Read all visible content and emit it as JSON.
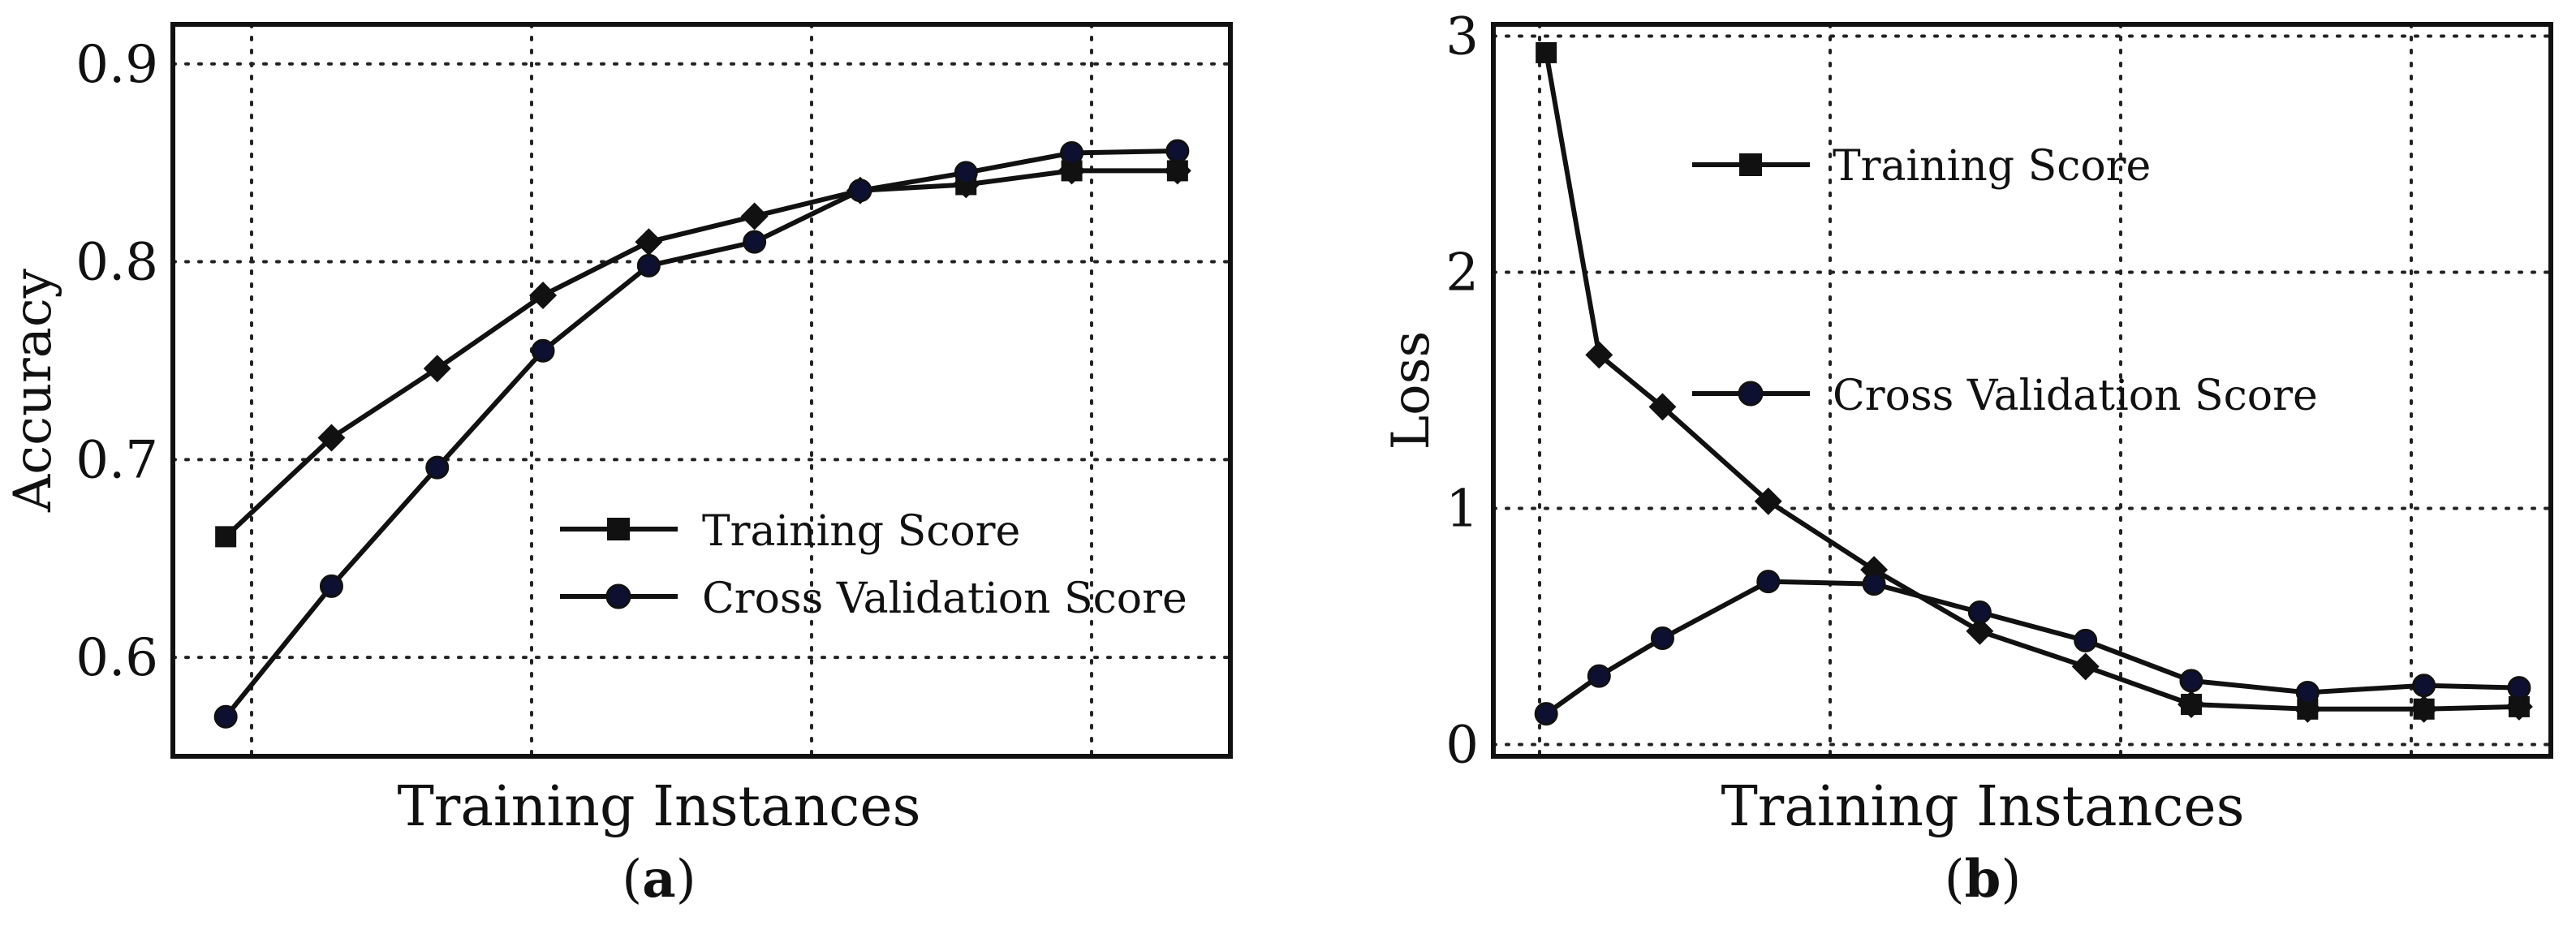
{
  "chart_data": [
    {
      "panel": "a",
      "type": "line",
      "xlabel": "Training Instances",
      "ylabel": "Accuracy",
      "caption_letter": "a",
      "grid": true,
      "legend_position": "center-right",
      "x": [
        1,
        2,
        3,
        4,
        5,
        6,
        7,
        8,
        9,
        10
      ],
      "xlim": [
        0.5,
        10.5
      ],
      "ylim": [
        0.55,
        0.92
      ],
      "yticks": [
        0.6,
        0.7,
        0.8,
        0.9
      ],
      "ytick_labels": [
        "0.6",
        "0.7",
        "0.8",
        "0.9"
      ],
      "series": [
        {
          "name": "Training Score",
          "values": [
            0.661,
            0.711,
            0.746,
            0.783,
            0.81,
            0.823,
            0.836,
            0.839,
            0.846,
            0.846
          ],
          "marker": "square",
          "color": "#111111"
        },
        {
          "name": "Cross Validation Score",
          "values": [
            0.57,
            0.636,
            0.696,
            0.755,
            0.798,
            0.81,
            0.836,
            0.845,
            0.855,
            0.856
          ],
          "marker": "circle",
          "color": "#111111",
          "marker_fill": "#0d1030"
        }
      ]
    },
    {
      "panel": "b",
      "type": "line",
      "xlabel": "Training Instances",
      "ylabel": "Loss",
      "caption_letter": "b",
      "grid": true,
      "legend_position": "top-center",
      "x": [
        1,
        2,
        3,
        4,
        5,
        6,
        7,
        8,
        9,
        10
      ],
      "xlim": [
        0.5,
        10.5
      ],
      "ylim": [
        -0.05,
        3.05
      ],
      "yticks": [
        0,
        1,
        2,
        3
      ],
      "ytick_labels": [
        "0",
        "1",
        "2",
        "3"
      ],
      "series": [
        {
          "name": "Training Score",
          "values": [
            2.93,
            1.65,
            1.43,
            1.03,
            0.74,
            0.48,
            0.33,
            0.17,
            0.15,
            0.15,
            0.16
          ],
          "x": [
            1,
            1.5,
            2.1,
            3.1,
            4.1,
            5.1,
            6.1,
            7.1,
            8.2,
            9.3,
            10.2
          ],
          "marker": "square",
          "color": "#111111"
        },
        {
          "name": "Cross Validation Score",
          "values": [
            0.13,
            0.29,
            0.45,
            0.69,
            0.68,
            0.56,
            0.44,
            0.27,
            0.22,
            0.25,
            0.24
          ],
          "x": [
            1,
            1.5,
            2.1,
            3.1,
            4.1,
            5.1,
            6.1,
            7.1,
            8.2,
            9.3,
            10.2
          ],
          "marker": "circle",
          "color": "#111111",
          "marker_fill": "#0d1030"
        }
      ]
    }
  ]
}
